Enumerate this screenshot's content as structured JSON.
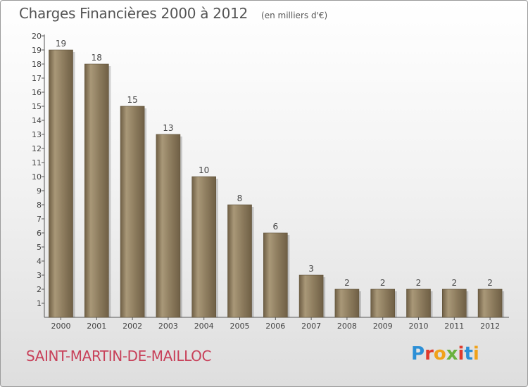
{
  "title": "Charges Financières 2000 à 2012",
  "unit": "(en milliers d'€)",
  "commune": "SAINT-MARTIN-DE-MAILLOC",
  "logo": {
    "letters": [
      "P",
      "r",
      "o",
      "x",
      "i",
      "t",
      "i"
    ],
    "colors": [
      "#2c8fd6",
      "#e03a2c",
      "#f0a21a",
      "#6ab23e",
      "#e03a2c",
      "#2c8fd6",
      "#f0a21a"
    ]
  },
  "colors": {
    "bar": "#8b7a5c",
    "bar_light": "#a99878",
    "bar_dark": "#6f5f45",
    "commune": "#c8415a"
  },
  "chart_data": {
    "type": "bar",
    "categories": [
      "2000",
      "2001",
      "2002",
      "2003",
      "2004",
      "2005",
      "2006",
      "2007",
      "2008",
      "2009",
      "2010",
      "2011",
      "2012"
    ],
    "values": [
      19,
      18,
      15,
      13,
      10,
      8,
      6,
      3,
      2,
      2,
      2,
      2,
      2
    ],
    "ylim": [
      1,
      20
    ],
    "yticks": [
      1,
      2,
      3,
      4,
      5,
      6,
      7,
      8,
      9,
      10,
      11,
      12,
      13,
      14,
      15,
      16,
      17,
      18,
      19,
      20
    ],
    "grid": false,
    "legend": "none"
  }
}
